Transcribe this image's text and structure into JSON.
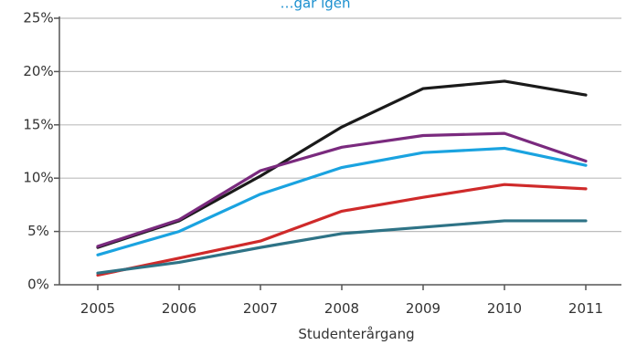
{
  "chart_data": {
    "type": "line",
    "title": "…går igen",
    "xlabel": "Studenterårgang",
    "ylabel": "",
    "categories": [
      "2005",
      "2006",
      "2007",
      "2008",
      "2009",
      "2010",
      "2011"
    ],
    "y_ticks": [
      "0%",
      "5%",
      "10%",
      "15%",
      "20%",
      "25%"
    ],
    "ylim": [
      0,
      25
    ],
    "grid": "horizontal",
    "legend": "none",
    "series": [
      {
        "color": "#1a1a1a",
        "values": [
          3.5,
          6.0,
          10.2,
          14.8,
          18.4,
          19.1,
          17.8
        ]
      },
      {
        "color": "#7a2a7e",
        "values": [
          3.6,
          6.1,
          10.7,
          12.9,
          14.0,
          14.2,
          11.6
        ]
      },
      {
        "color": "#1aa3e0",
        "values": [
          2.8,
          5.0,
          8.5,
          11.0,
          12.4,
          12.8,
          11.2
        ]
      },
      {
        "color": "#cf2a2a",
        "values": [
          0.9,
          2.5,
          4.1,
          6.9,
          8.2,
          9.4,
          9.0
        ]
      },
      {
        "color": "#2e7386",
        "values": [
          1.1,
          2.1,
          3.5,
          4.8,
          5.4,
          6.0,
          6.0
        ]
      }
    ]
  }
}
